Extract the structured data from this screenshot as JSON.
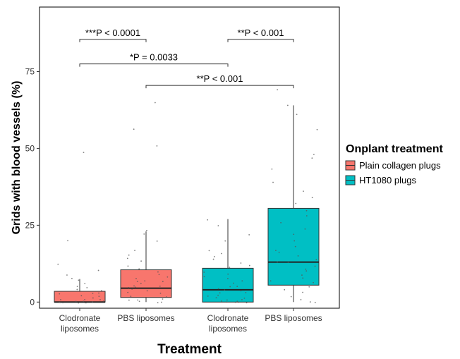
{
  "chart_data": {
    "type": "box",
    "xlabel": "Treatment",
    "ylabel": "Grids with blood vessels (%)",
    "ylim": [
      -2,
      96
    ],
    "yticks": [
      0,
      25,
      50,
      75
    ],
    "categories": [
      {
        "label_line1": "Clodronate",
        "label_line2": "liposomes"
      },
      {
        "label_line1": "PBS liposomes",
        "label_line2": ""
      },
      {
        "label_line1": "Clodronate",
        "label_line2": "liposomes"
      },
      {
        "label_line1": "PBS liposomes",
        "label_line2": ""
      }
    ],
    "legend": {
      "title": "Onplant treatment",
      "position": "right",
      "items": [
        {
          "label": "Plain collagen plugs",
          "color": "#F8766D"
        },
        {
          "label": "HT1080 plugs",
          "color": "#00BFC4"
        }
      ]
    },
    "boxes": [
      {
        "category_index": 0,
        "group_index": 0,
        "whisker_low": 0,
        "q1": 0,
        "median": 0,
        "q3": 3.5,
        "whisker_high": 7.5,
        "points": [
          0,
          0,
          0,
          0,
          0,
          0,
          0,
          0,
          0,
          0,
          0.5,
          1,
          1,
          1.5,
          2,
          2,
          2.5,
          3,
          3,
          3.5,
          4,
          4.5,
          5,
          6,
          7,
          8,
          9,
          10,
          12,
          20,
          49
        ]
      },
      {
        "category_index": 1,
        "group_index": 0,
        "whisker_low": 0,
        "q1": 1.5,
        "median": 4.5,
        "q3": 10.5,
        "whisker_high": 23,
        "points": [
          0,
          0,
          0,
          0.5,
          1,
          1,
          2,
          2,
          3,
          3,
          3.5,
          4,
          4.5,
          5,
          5,
          5.5,
          6,
          6.5,
          7,
          7,
          8,
          8,
          9,
          10,
          11,
          12,
          13,
          14,
          15,
          17,
          20,
          22,
          23,
          51,
          56,
          65
        ]
      },
      {
        "category_index": 2,
        "group_index": 1,
        "whisker_low": 0,
        "q1": 0,
        "median": 4,
        "q3": 11,
        "whisker_high": 27,
        "points": [
          0,
          0,
          0,
          0,
          0,
          0,
          0.5,
          1,
          1,
          1.5,
          2,
          2,
          3,
          3,
          3.5,
          4,
          4,
          5,
          5,
          6,
          7,
          7.5,
          8,
          9,
          10,
          11,
          12,
          13,
          14,
          15,
          16,
          17,
          20,
          22,
          25,
          27
        ]
      },
      {
        "category_index": 3,
        "group_index": 1,
        "whisker_low": 0,
        "q1": 5.5,
        "median": 13,
        "q3": 30.5,
        "whisker_high": 64,
        "points": [
          0,
          0,
          1,
          2,
          3,
          4,
          5,
          6,
          7,
          8,
          9,
          10,
          11,
          12,
          13,
          13,
          14,
          15,
          16,
          17,
          18,
          20,
          22,
          24,
          26,
          28,
          30,
          32,
          34,
          36,
          39,
          43,
          47,
          48,
          56,
          61,
          64,
          69
        ]
      }
    ],
    "significance": [
      {
        "from_index": 0,
        "to_index": 1,
        "y": 85.5,
        "label": "***P < 0.0001"
      },
      {
        "from_index": 2,
        "to_index": 3,
        "y": 85.5,
        "label": "**P < 0.001"
      },
      {
        "from_index": 0,
        "to_index": 2,
        "y": 77.5,
        "label": "*P = 0.0033"
      },
      {
        "from_index": 1,
        "to_index": 3,
        "y": 70.5,
        "label": "**P < 0.001"
      }
    ]
  }
}
